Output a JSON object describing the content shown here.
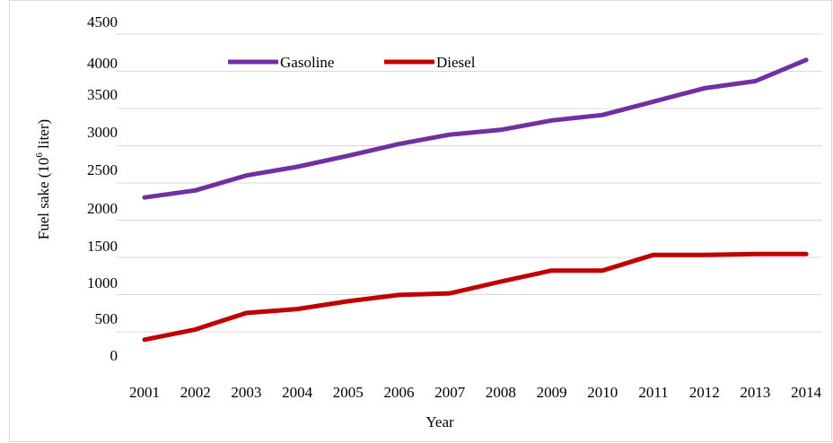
{
  "chart_data": {
    "type": "line",
    "title": "",
    "xlabel": "Year",
    "ylabel": "Fuel sake (10^6 liter)",
    "ylabel_parts": {
      "base": "Fuel sake (10",
      "sup": "6",
      "rest": " liter)"
    },
    "categories": [
      "2001",
      "2002",
      "2003",
      "2004",
      "2005",
      "2006",
      "2007",
      "2008",
      "2009",
      "2010",
      "2011",
      "2012",
      "2013",
      "2014"
    ],
    "y_ticks": [
      0,
      500,
      1000,
      1500,
      2000,
      2500,
      3000,
      3500,
      4000,
      4500
    ],
    "ylim": [
      0,
      4500
    ],
    "grid": true,
    "legend_position": "top-center",
    "series": [
      {
        "name": "Gasoline",
        "color": "#7030a0",
        "values": [
          2200,
          2290,
          2480,
          2590,
          2730,
          2880,
          3000,
          3060,
          3180,
          3250,
          3420,
          3590,
          3680,
          3950
        ]
      },
      {
        "name": "Diesel",
        "color": "#c00000",
        "values": [
          390,
          520,
          730,
          780,
          880,
          960,
          980,
          1130,
          1270,
          1270,
          1470,
          1470,
          1480,
          1480
        ]
      }
    ]
  }
}
